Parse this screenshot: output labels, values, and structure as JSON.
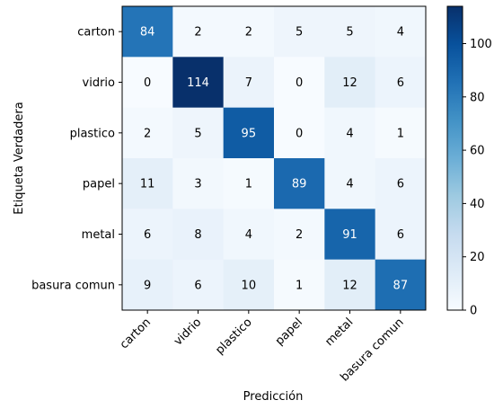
{
  "chart_data": {
    "type": "heatmap",
    "categories": [
      "carton",
      "vidrio",
      "plastico",
      "papel",
      "metal",
      "basura comun"
    ],
    "matrix": [
      [
        84,
        2,
        2,
        5,
        5,
        4
      ],
      [
        0,
        114,
        7,
        0,
        12,
        6
      ],
      [
        2,
        5,
        95,
        0,
        4,
        1
      ],
      [
        11,
        3,
        1,
        89,
        4,
        6
      ],
      [
        6,
        8,
        4,
        2,
        91,
        6
      ],
      [
        9,
        6,
        10,
        1,
        12,
        87
      ]
    ],
    "xlabel": "Predicción",
    "ylabel": "Etiqueta Verdadera",
    "colormap": "Blues",
    "vmin": 0,
    "vmax": 114,
    "colorbar_ticks": [
      0,
      20,
      40,
      60,
      80,
      100
    ],
    "x_tick_rotation": 45,
    "text_color_dark": "#000000",
    "text_color_light": "#ffffff"
  }
}
